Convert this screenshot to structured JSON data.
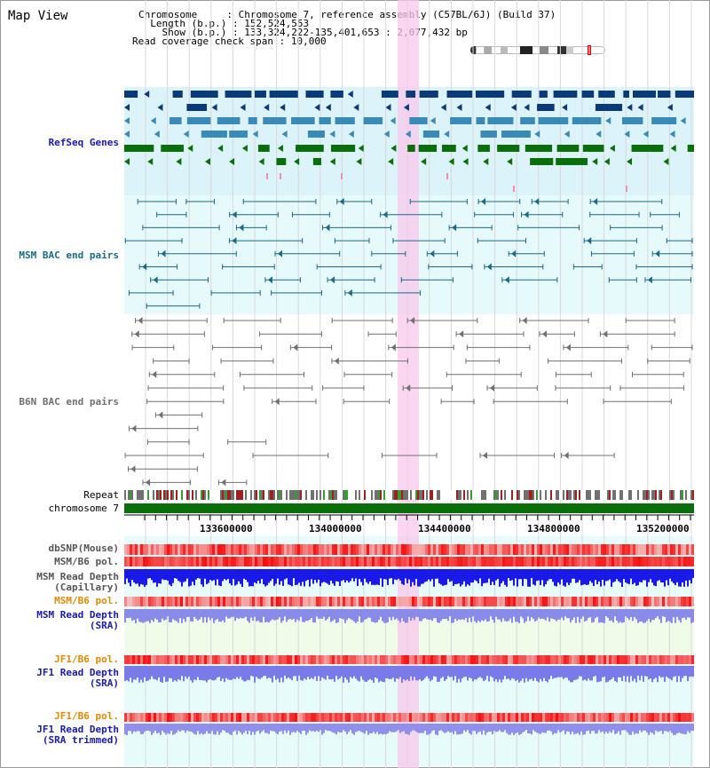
{
  "app": {
    "title": "Map View"
  },
  "info": {
    "chromosome_label": "Chromosome    ",
    "chromosome_value": "Chromosome 7, reference assembly (C57BL/6J) (Build 37)",
    "length_label": "Length (b.p.)",
    "length_value": "152,524,553",
    "show_label": "Show (b.p.)",
    "show_value": "133,324,222-135,401,653 : 2,077,432 bp",
    "coverage_label": "Read coverage check span",
    "coverage_value": "10,000"
  },
  "tracks": {
    "refseq": "RefSeq Genes",
    "msm_bac": "MSM BAC end pairs",
    "b6n_bac": "B6N BAC end pairs",
    "repeat": "Repeat",
    "chromosome": "chromosome 7",
    "dbsnp": "dbSNP(Mouse)",
    "msm_b6_pol_1": "MSM/B6 pol.",
    "msm_depth_cap_1": "MSM Read Depth",
    "msm_depth_cap_2": "(Capillary)",
    "msm_b6_pol_2": "MSM/B6 pol.",
    "msm_depth_sra_1": "MSM Read Depth",
    "msm_depth_sra_2": "(SRA)",
    "jf1_b6_pol_1": "JF1/B6 pol.",
    "jf1_depth_sra_1": "JF1 Read Depth",
    "jf1_depth_sra_2": "(SRA)",
    "jf1_b6_pol_2": "JF1/B6 pol.",
    "jf1_depth_trim_1": "JF1 Read Depth",
    "jf1_depth_trim_2": "(SRA trimmed)"
  },
  "ruler": {
    "ticks": [
      "133600000",
      "134000000",
      "134400000",
      "134800000",
      "135200000"
    ]
  },
  "colors": {
    "refseq_dark": "#0a3a78",
    "refseq_mid": "#3a8ab8",
    "refseq_green": "#0a6e0a",
    "msm_bac": "#1a6a88",
    "b6n_bac": "#707070",
    "highlight": "#f8c8ec",
    "chromosome_bar": "#0a6e0a"
  }
}
